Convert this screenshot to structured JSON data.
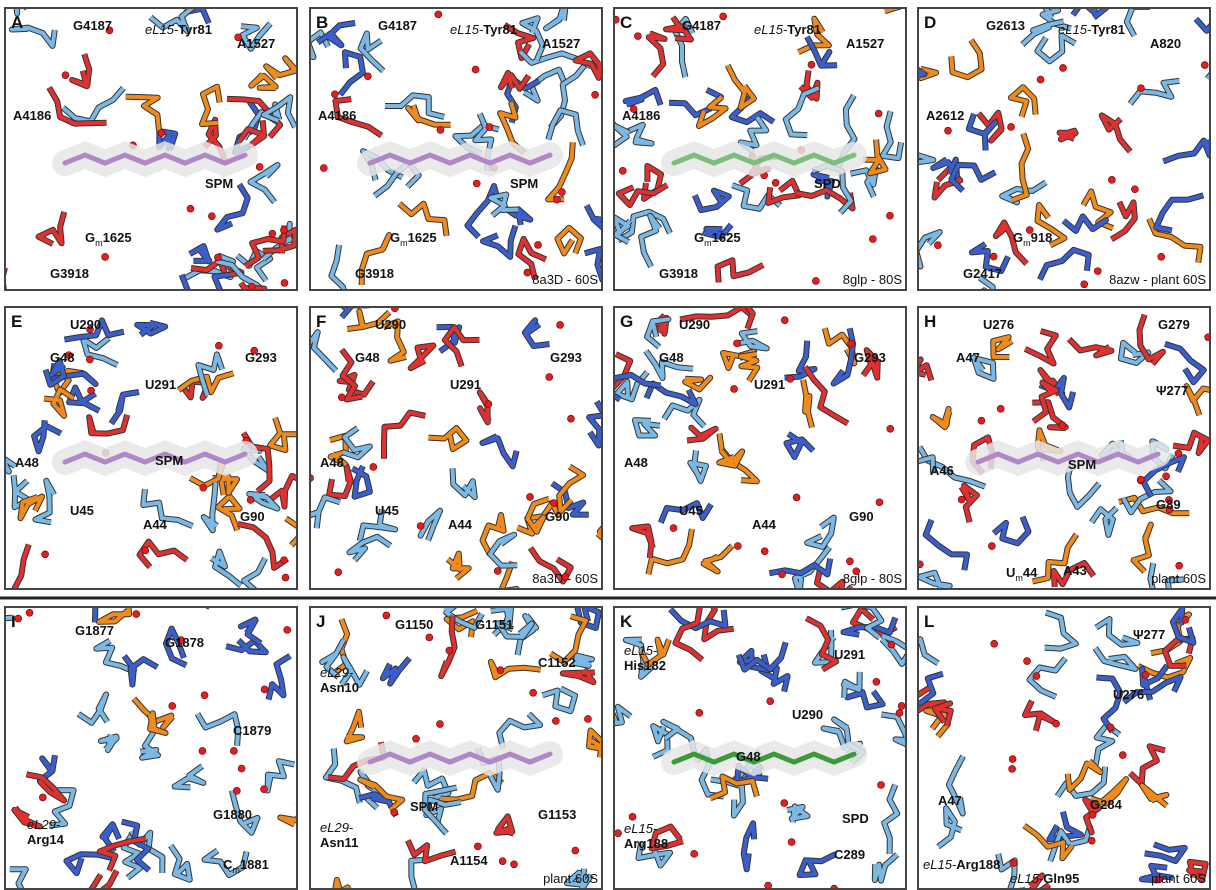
{
  "panels": [
    {
      "letter": "A",
      "labels": [
        [
          "G4187"
        ],
        [
          "eL15-",
          "Tyr81"
        ],
        [
          "A1527"
        ],
        [
          "A4186"
        ],
        [
          "SPM"
        ],
        [
          "G",
          "m",
          "1625"
        ],
        [
          "G3918"
        ]
      ]
    },
    {
      "letter": "B",
      "labels": [
        [
          "G4187"
        ],
        [
          "eL15-",
          "Tyr81"
        ],
        [
          "A1527"
        ],
        [
          "A4186"
        ],
        [
          "SPM"
        ],
        [
          "G",
          "m",
          "1625"
        ],
        [
          "G3918"
        ]
      ],
      "footer": "8a3D - 60S"
    },
    {
      "letter": "C",
      "labels": [
        [
          "G4187"
        ],
        [
          "eL15-",
          "Tyr81"
        ],
        [
          "A1527"
        ],
        [
          "A4186"
        ],
        [
          "SPD"
        ],
        [
          "G",
          "m",
          "1625"
        ],
        [
          "G3918"
        ]
      ],
      "footer": "8glp - 80S"
    },
    {
      "letter": "D",
      "labels": [
        [
          "G2613"
        ],
        [
          "eL15-",
          "Tyr81"
        ],
        [
          "A820"
        ],
        [
          "A2612"
        ],
        [
          "G",
          "m",
          "918"
        ],
        [
          "G2417"
        ]
      ],
      "footer": "8azw - plant 60S"
    },
    {
      "letter": "E",
      "labels": [
        [
          "U290"
        ],
        [
          "G48"
        ],
        [
          "G293"
        ],
        [
          "U291"
        ],
        [
          "A48"
        ],
        [
          "SPM"
        ],
        [
          "U45"
        ],
        [
          "A44"
        ],
        [
          "G90"
        ]
      ]
    },
    {
      "letter": "F",
      "labels": [
        [
          "U290"
        ],
        [
          "G48"
        ],
        [
          "G293"
        ],
        [
          "U291"
        ],
        [
          "A48"
        ],
        [
          "U45"
        ],
        [
          "A44"
        ],
        [
          "G90"
        ]
      ],
      "footer": "8a3D - 60S"
    },
    {
      "letter": "G",
      "labels": [
        [
          "U290"
        ],
        [
          "G48"
        ],
        [
          "G293"
        ],
        [
          "U291"
        ],
        [
          "A48"
        ],
        [
          "U45"
        ],
        [
          "A44"
        ],
        [
          "G90"
        ]
      ],
      "footer": "8glp - 80S"
    },
    {
      "letter": "H",
      "labels": [
        [
          "U276"
        ],
        [
          "G279"
        ],
        [
          "A47"
        ],
        [
          "Ψ277"
        ],
        [
          "A46"
        ],
        [
          "SPM"
        ],
        [
          "G89"
        ],
        [
          "U",
          "m",
          "44"
        ],
        [
          "A43"
        ]
      ],
      "footer": "plant 60S"
    },
    {
      "letter": "I",
      "labels": [
        [
          "G1877"
        ],
        [
          "G1878"
        ],
        [
          "C1879"
        ],
        [
          "G1880"
        ],
        [
          "eL29-",
          "Arg14"
        ],
        [
          "C",
          "m",
          "1881"
        ]
      ]
    },
    {
      "letter": "J",
      "labels": [
        [
          "G1150"
        ],
        [
          "G1151"
        ],
        [
          "eL29-",
          "Asn10"
        ],
        [
          "C1152"
        ],
        [
          "G1153"
        ],
        [
          "SPM"
        ],
        [
          "eL29-",
          "Asn11"
        ],
        [
          "A1154"
        ]
      ],
      "footer": "plant 60S"
    },
    {
      "letter": "K",
      "labels": [
        [
          "eL15-",
          "His182"
        ],
        [
          "U291"
        ],
        [
          "U290"
        ],
        [
          "G48"
        ],
        [
          "SPD"
        ],
        [
          "eL15-",
          "Arg188"
        ],
        [
          "C289"
        ]
      ]
    },
    {
      "letter": "L",
      "labels": [
        [
          "Ψ277"
        ],
        [
          "U276"
        ],
        [
          "A47"
        ],
        [
          "G284"
        ],
        [
          "eL15-",
          "Arg188"
        ],
        [
          "eL15-",
          "Gln95"
        ]
      ],
      "footer": "plant 60S"
    }
  ]
}
